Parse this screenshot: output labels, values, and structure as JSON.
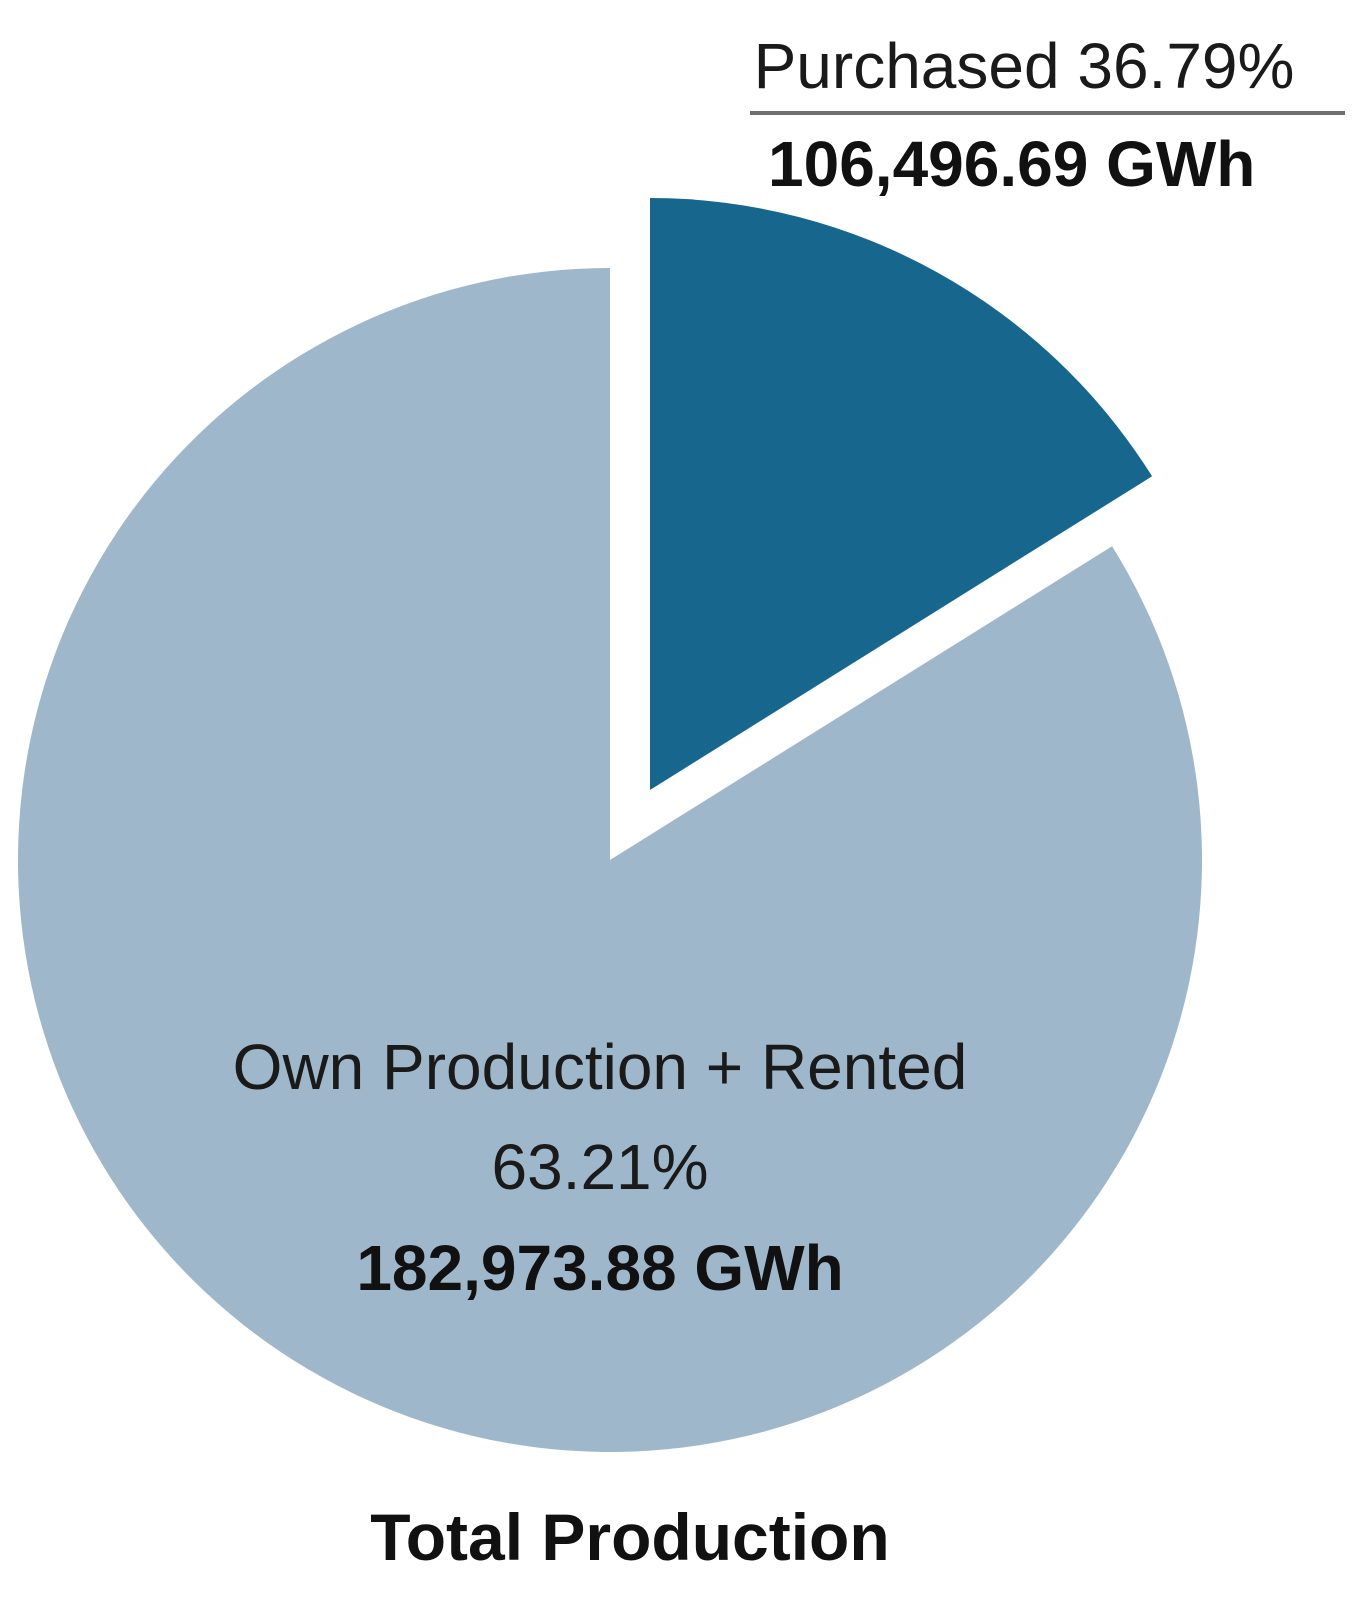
{
  "chart_data": {
    "type": "pie",
    "title": "Total Production",
    "slices": [
      {
        "name": "Purchased",
        "percent_label": "Purchased 36.79%",
        "percent": 36.79,
        "value_label": "106,496.69 GWh",
        "value": 106496.69,
        "color": "#17668e",
        "exploded": true
      },
      {
        "name": "Own Production + Rented",
        "percent_label": "63.21%",
        "percent": 63.21,
        "value_label": "182,973.88 GWh",
        "value": 182973.88,
        "color": "#9fb7cb",
        "exploded": false
      }
    ],
    "legend": "none",
    "grid": false
  }
}
